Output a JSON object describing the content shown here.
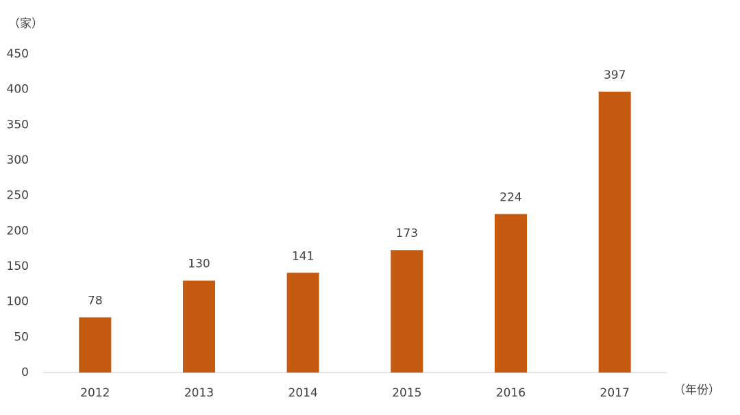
{
  "chart_data": {
    "type": "bar",
    "y_label": "（家）",
    "x_label": "（年份）",
    "categories": [
      "2012",
      "2013",
      "2014",
      "2015",
      "2016",
      "2017"
    ],
    "values": [
      78,
      130,
      141,
      173,
      224,
      397
    ],
    "color": "#c55a11",
    "ylim": [
      0,
      450
    ],
    "yticks": [
      0,
      50,
      100,
      150,
      200,
      250,
      300,
      350,
      400,
      450
    ],
    "grid": false,
    "data_labels": true
  }
}
